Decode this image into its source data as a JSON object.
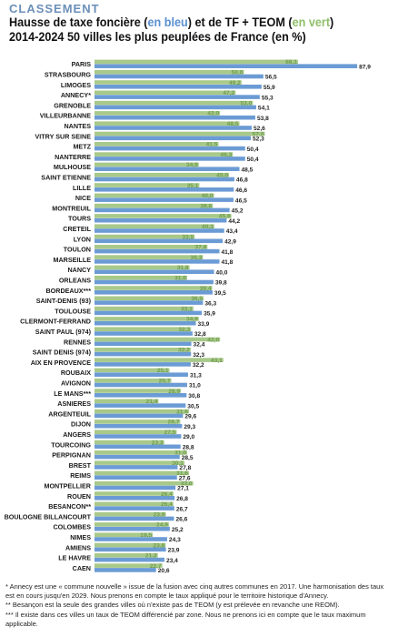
{
  "header": {
    "kicker": "CLASSEMENT",
    "title_part1": "Hausse de taxe foncière (",
    "title_blue": "en bleu",
    "title_part2": ") et de TF + TEOM (",
    "title_green": "en vert",
    "title_part3": ")",
    "title_line2": "2014-2024 50 villes les plus peuplées de France (en %)"
  },
  "colors": {
    "blue": "#6b9bd5",
    "green": "#a8c98a",
    "blue_label": "#222222",
    "green_label": "#6f9d4c"
  },
  "chart_data": {
    "type": "bar",
    "orientation": "horizontal",
    "categories": [
      "PARIS",
      "STRASBOURG",
      "LIMOGES",
      "ANNECY*",
      "GRENOBLE",
      "VILLEURBANNE",
      "NANTES",
      "VITRY SUR SEINE",
      "METZ",
      "NANTERRE",
      "MULHOUSE",
      "SAINT ETIENNE",
      "LILLE",
      "NICE",
      "MONTREUIL",
      "TOURS",
      "CRETEIL",
      "LYON",
      "TOULON",
      "MARSEILLE",
      "NANCY",
      "ORLEANS",
      "BORDEAUX***",
      "SAINT-DENIS (93)",
      "TOULOUSE",
      "CLERMONT-FERRAND",
      "SAINT PAUL (974)",
      "RENNES",
      "SAINT DENIS (974)",
      "AIX EN PROVENCE",
      "ROUBAIX",
      "AVIGNON",
      "LE MANS***",
      "ASNIERES",
      "ARGENTEUIL",
      "DIJON",
      "ANGERS",
      "TOURCOING",
      "PERPIGNAN",
      "BREST",
      "REIMS",
      "MONTPELLIER",
      "ROUEN",
      "BESANCON**",
      "BOULOGNE BILLANCOURT",
      "COLOMBES",
      "NIMES",
      "AMIENS",
      "LE HAVRE",
      "CAEN"
    ],
    "series": [
      {
        "name": "en bleu",
        "values": [
          87.9,
          56.5,
          55.9,
          55.3,
          54.1,
          53.8,
          52.6,
          52.3,
          50.4,
          50.4,
          48.5,
          46.8,
          46.6,
          46.5,
          45.2,
          44.2,
          43.4,
          42.9,
          41.8,
          41.8,
          40.0,
          39.8,
          39.5,
          36.3,
          35.9,
          33.9,
          32.8,
          32.4,
          32.3,
          32.2,
          31.3,
          31.0,
          30.8,
          30.5,
          29.6,
          29.3,
          29.0,
          28.8,
          28.5,
          27.8,
          27.6,
          27.1,
          26.8,
          26.7,
          26.6,
          25.2,
          24.3,
          23.9,
          23.4,
          20.6
        ]
      },
      {
        "name": "en vert",
        "values": [
          68.1,
          50.0,
          49.2,
          47.2,
          53.0,
          42.0,
          48.5,
          57.0,
          41.5,
          46.3,
          34.9,
          45.0,
          35.1,
          40.0,
          39.6,
          45.8,
          40.1,
          33.5,
          37.8,
          36.3,
          31.8,
          31.0,
          39.4,
          36.5,
          33.1,
          34.9,
          32.3,
          42.0,
          32.2,
          43.1,
          25.1,
          25.7,
          28.9,
          21.4,
          31.6,
          28.7,
          27.5,
          23.3,
          31.0,
          30.1,
          31.6,
          33.0,
          26.4,
          26.4,
          23.9,
          24.9,
          19.5,
          23.8,
          21.2,
          22.7
        ]
      }
    ],
    "xlim": [
      0,
      90
    ]
  },
  "footnotes": [
    "* Annecy est une « commune nouvelle » issue de la fusion avec cinq autres communes en 2017. Une harmonisation des taux est en cours jusqu'en 2029. Nous prenons en compte le taux appliqué pour le territoire historique d'Annecy.",
    "** Besançon est la seule des grandes villes où n'existe pas de TEOM (y est prélevée en revanche une REOM).",
    "*** Il existe dans ces villes un taux de TEOM différencié par zone. Nous ne prenons ici en compte que le taux maximum applicable."
  ]
}
